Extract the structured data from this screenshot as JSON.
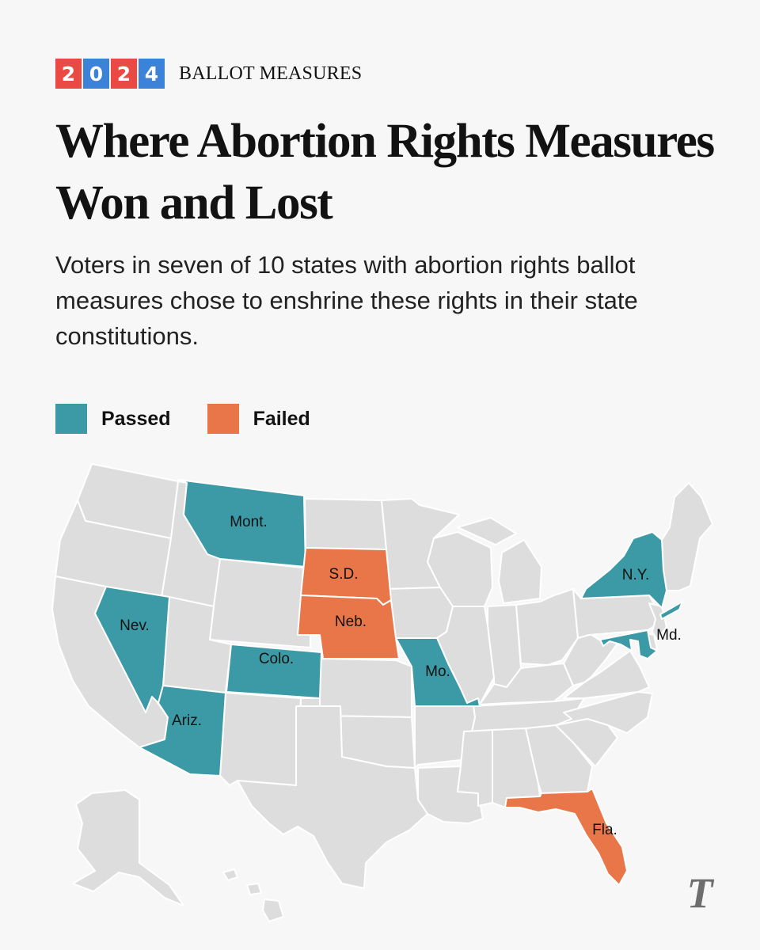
{
  "header": {
    "year_digits": [
      {
        "char": "2",
        "color": "#ea4a43"
      },
      {
        "char": "0",
        "color": "#3c82d8"
      },
      {
        "char": "2",
        "color": "#ea4a43"
      },
      {
        "char": "4",
        "color": "#3c82d8"
      }
    ],
    "section": "BALLOT MEASURES"
  },
  "headline": "Where Abortion Rights Measures Won and Lost",
  "subhead": "Voters in seven of 10 states with abortion rights ballot measures chose to enshrine these rights in their state constitutions.",
  "legend": {
    "passed": {
      "label": "Passed",
      "color": "#3b9aa6"
    },
    "failed": {
      "label": "Failed",
      "color": "#e87648"
    }
  },
  "map": {
    "neutral_color": "#dddddd",
    "states": {
      "mont": {
        "label": "Mont.",
        "status": "passed"
      },
      "sd": {
        "label": "S.D.",
        "status": "failed"
      },
      "neb": {
        "label": "Neb.",
        "status": "failed"
      },
      "nev": {
        "label": "Nev.",
        "status": "passed"
      },
      "colo": {
        "label": "Colo.",
        "status": "passed"
      },
      "mo": {
        "label": "Mo.",
        "status": "passed"
      },
      "ariz": {
        "label": "Ariz.",
        "status": "passed"
      },
      "ny": {
        "label": "N.Y.",
        "status": "passed"
      },
      "md": {
        "label": "Md.",
        "status": "passed"
      },
      "fla": {
        "label": "Fla.",
        "status": "failed"
      }
    }
  },
  "logo": {
    "glyph": "T",
    "name": "The New York Times"
  }
}
